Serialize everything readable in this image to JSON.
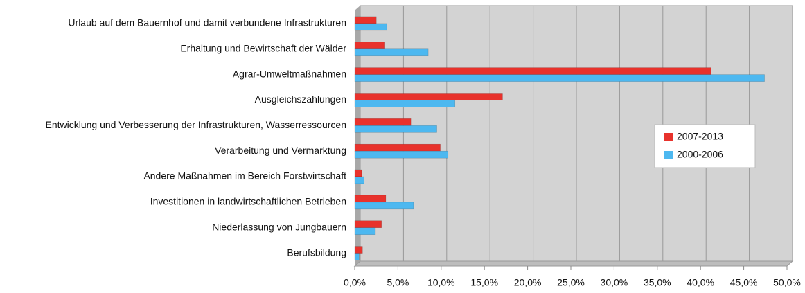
{
  "chart_data": {
    "type": "bar",
    "orientation": "horizontal",
    "categories": [
      "Urlaub auf dem Bauernhof und damit verbundene Infrastrukturen",
      "Erhaltung und Bewirtschaft der Wälder",
      "Agrar-Umweltmaßnahmen",
      "Ausgleichszahlungen",
      "Entwicklung und Verbesserung der Infrastrukturen, Wasserressourcen",
      "Verarbeitung und Vermarktung",
      "Andere Maßnahmen im Bereich Forstwirtschaft",
      "Investitionen in landwirtschaftlichen Betrieben",
      "Niederlassung von Jungbauern",
      "Berufsbildung"
    ],
    "series": [
      {
        "name": "2007-2013",
        "color": "#e8322c",
        "values": [
          2.5,
          3.5,
          41.2,
          17.1,
          6.5,
          9.9,
          0.8,
          3.6,
          3.1,
          0.9
        ]
      },
      {
        "name": "2000-2006",
        "color": "#4db8f0",
        "values": [
          3.7,
          8.5,
          47.4,
          11.6,
          9.5,
          10.8,
          1.1,
          6.8,
          2.4,
          0.5
        ]
      }
    ],
    "xlim": [
      0,
      50
    ],
    "xticks": [
      {
        "value": 0,
        "label": "0,0%"
      },
      {
        "value": 5,
        "label": "5,0%"
      },
      {
        "value": 10,
        "label": "10,0%"
      },
      {
        "value": 15,
        "label": "15,0%"
      },
      {
        "value": 20,
        "label": "20,0%"
      },
      {
        "value": 25,
        "label": "25,0%"
      },
      {
        "value": 30,
        "label": "30,0%"
      },
      {
        "value": 35,
        "label": "35,0%"
      },
      {
        "value": 40,
        "label": "40,0%"
      },
      {
        "value": 45,
        "label": "45,0%"
      },
      {
        "value": 50,
        "label": "50,0%"
      }
    ],
    "grid": true,
    "legend": "right"
  }
}
